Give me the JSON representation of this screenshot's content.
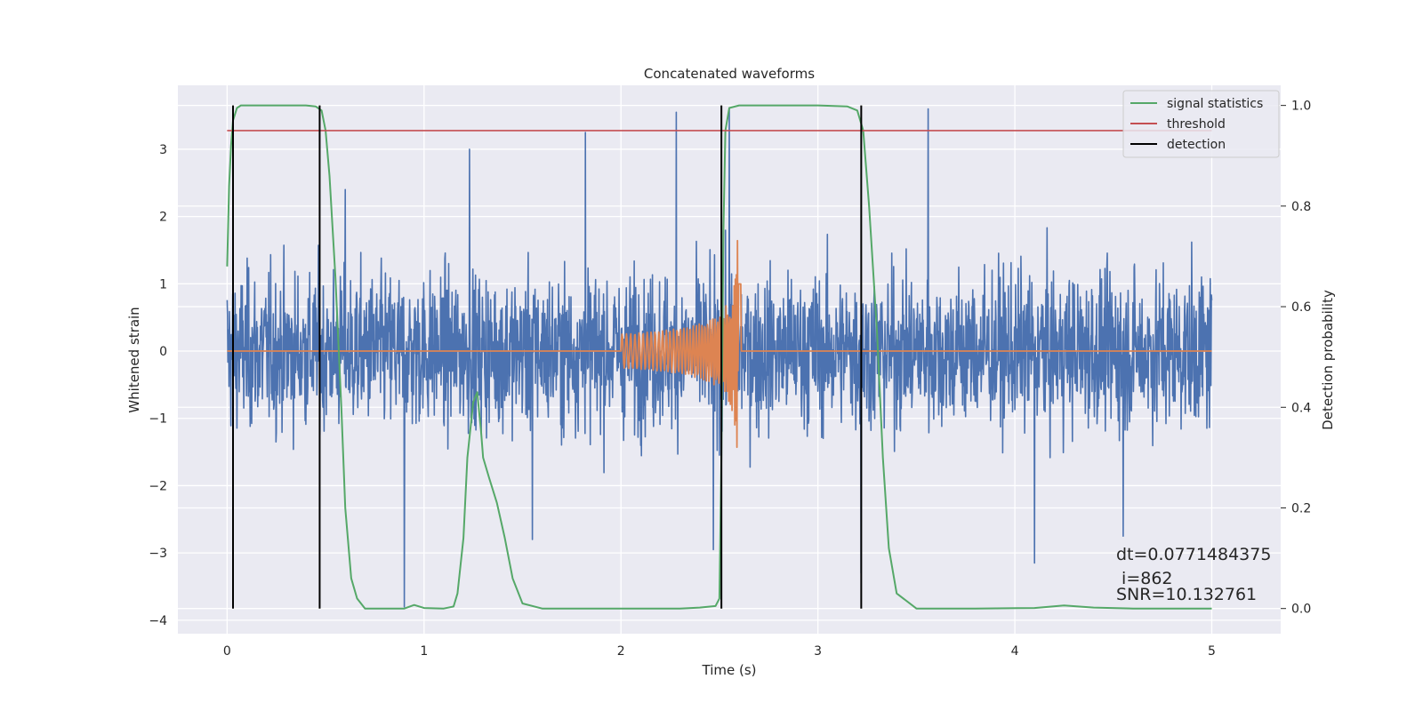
{
  "chart_data": {
    "type": "line",
    "title": "Concatenated waveforms",
    "xlabel": "Time (s)",
    "ylabel": "Whitened strain",
    "ylabel_right": "Detection probability",
    "xlim": [
      -0.25,
      5.35
    ],
    "ylim": [
      -4.2,
      3.95
    ],
    "ylim_right": [
      -0.05,
      1.04
    ],
    "x_ticks": [
      0,
      1,
      2,
      3,
      4,
      5
    ],
    "y_ticks": [
      -4,
      -3,
      -2,
      -1,
      0,
      1,
      2,
      3
    ],
    "y_ticks_right": [
      0.0,
      0.2,
      0.4,
      0.6,
      0.8,
      1.0
    ],
    "x_tick_labels": [
      "0",
      "1",
      "2",
      "3",
      "4",
      "5"
    ],
    "y_tick_labels": [
      "−4",
      "−3",
      "−2",
      "−1",
      "0",
      "1",
      "2",
      "3"
    ],
    "y_tick_labels_right": [
      "0.0",
      "0.2",
      "0.4",
      "0.6",
      "0.8",
      "1.0"
    ],
    "grid": true,
    "legend_position": "top-right",
    "colors": {
      "background": "#eaeaf2",
      "grid": "#ffffff",
      "strain": "#4c72b0",
      "injected": "#dd8452",
      "statistics": "#55a868",
      "threshold": "#c44e52",
      "detection": "#000000"
    },
    "noise": {
      "x_range": [
        0,
        5
      ],
      "typical_amplitude": 1.3,
      "spike_x": [
        0.6,
        0.9,
        1.23,
        1.55,
        1.82,
        2.28,
        2.47,
        2.55,
        3.22,
        3.56,
        4.1,
        4.55
      ],
      "spike_y": [
        2.4,
        -3.8,
        3.0,
        -2.8,
        3.25,
        3.55,
        -2.95,
        3.6,
        -3.3,
        3.6,
        -3.15,
        -2.75
      ]
    },
    "injected_signal": {
      "x_range": [
        2.0,
        2.61
      ],
      "amplitude_start": 0.25,
      "amplitude_peak": 1.95,
      "peak_x": 2.59
    },
    "series": [
      {
        "name": "signal statistics",
        "axis": "right",
        "x": [
          0.0,
          0.01,
          0.02,
          0.03,
          0.05,
          0.07,
          0.1,
          0.2,
          0.3,
          0.4,
          0.45,
          0.48,
          0.5,
          0.52,
          0.55,
          0.58,
          0.6,
          0.63,
          0.66,
          0.7,
          0.8,
          0.9,
          0.95,
          1.0,
          1.1,
          1.15,
          1.17,
          1.2,
          1.22,
          1.25,
          1.27,
          1.29,
          1.3,
          1.33,
          1.37,
          1.41,
          1.45,
          1.5,
          1.6,
          2.0,
          2.3,
          2.4,
          2.48,
          2.5,
          2.51,
          2.52,
          2.53,
          2.55,
          2.6,
          2.8,
          3.0,
          3.15,
          3.2,
          3.23,
          3.26,
          3.3,
          3.33,
          3.36,
          3.4,
          3.5,
          3.8,
          4.1,
          4.25,
          4.4,
          4.6,
          5.0
        ],
        "y": [
          0.68,
          0.84,
          0.92,
          0.97,
          0.995,
          1.0,
          1.0,
          1.0,
          1.0,
          1.0,
          0.998,
          0.99,
          0.95,
          0.86,
          0.66,
          0.4,
          0.2,
          0.06,
          0.02,
          0.0,
          0.0,
          0.0,
          0.007,
          0.001,
          0.0,
          0.004,
          0.03,
          0.14,
          0.3,
          0.41,
          0.43,
          0.35,
          0.3,
          0.26,
          0.21,
          0.14,
          0.06,
          0.01,
          0.0,
          0.0,
          0.0,
          0.002,
          0.005,
          0.02,
          0.3,
          0.75,
          0.95,
          0.995,
          1.0,
          1.0,
          1.0,
          0.998,
          0.99,
          0.95,
          0.8,
          0.55,
          0.3,
          0.12,
          0.03,
          0.0,
          0.0,
          0.001,
          0.006,
          0.002,
          0.0,
          0.0
        ]
      },
      {
        "name": "threshold",
        "axis": "right",
        "x": [
          0.0,
          5.0
        ],
        "y": [
          0.95,
          0.95
        ]
      },
      {
        "name": "detection",
        "axis": "right",
        "x": [
          0.03,
          0.47,
          2.51,
          3.22
        ],
        "ymin": 0.0,
        "ymax": 1.0
      }
    ],
    "annotations": [
      "dt=0.0771484375",
      " i=862",
      "SNR=10.132761"
    ],
    "annotation_anchor_x": 4.5
  }
}
